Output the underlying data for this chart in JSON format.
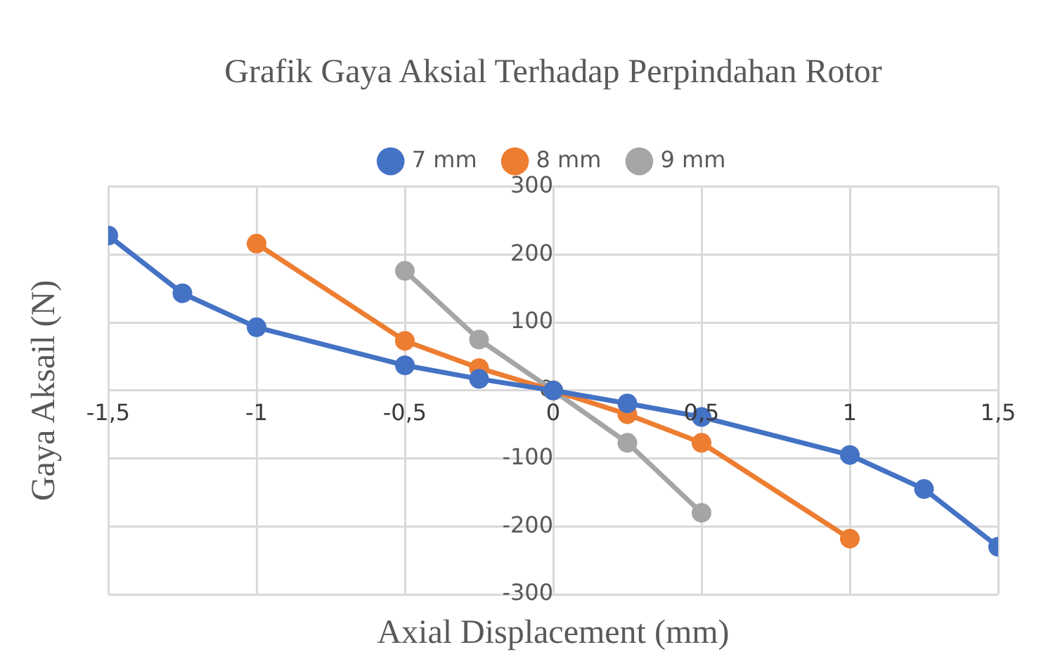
{
  "chart_data": {
    "type": "line",
    "title": "Grafik Gaya Aksial Terhadap Perpindahan Rotor",
    "xlabel": "Axial Displacement (mm)",
    "ylabel": "Gaya Aksail (N)",
    "series": [
      {
        "name": "7 mm",
        "color": "#4472c4",
        "x": [
          -1.5,
          -1.25,
          -1,
          -0.5,
          -0.25,
          0,
          0.25,
          0.5,
          1,
          1.25,
          1.5
        ],
        "values": [
          228,
          143,
          93,
          37,
          17,
          0,
          -19,
          -39,
          -95,
          -145,
          -230
        ]
      },
      {
        "name": "8 mm",
        "color": "#ed7d31",
        "x": [
          -1,
          -0.5,
          -0.25,
          0,
          0.25,
          0.5,
          1
        ],
        "values": [
          216,
          73,
          33,
          0,
          -35,
          -77,
          -218
        ]
      },
      {
        "name": "9 mm",
        "color": "#a5a5a5",
        "x": [
          -0.5,
          -0.25,
          0,
          0.25,
          0.5
        ],
        "values": [
          176,
          75,
          0,
          -77,
          -180
        ]
      }
    ],
    "xlim": [
      -1.5,
      1.5
    ],
    "xticks": [
      {
        "value": -1.5,
        "label": "-1,5"
      },
      {
        "value": -1,
        "label": "-1"
      },
      {
        "value": -0.5,
        "label": "-0,5"
      },
      0,
      {
        "value": 0.5,
        "label": "0,5"
      },
      1,
      {
        "value": 1.5,
        "label": "1,5"
      }
    ],
    "ylim": [
      -300,
      300
    ],
    "yticks": [
      -300,
      -200,
      -100,
      0,
      100,
      200,
      300
    ],
    "grid": true,
    "legend": "top",
    "marker": "circle",
    "line_style": "solid"
  }
}
